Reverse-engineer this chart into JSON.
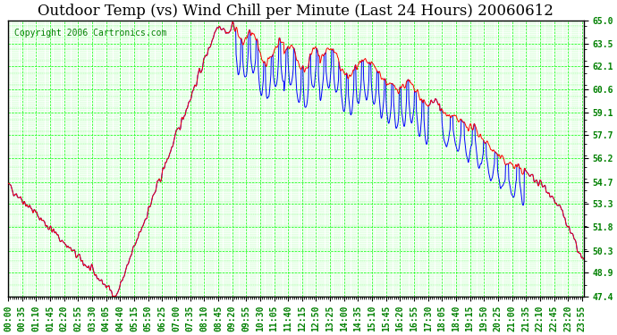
{
  "title": "Outdoor Temp (vs) Wind Chill per Minute (Last 24 Hours) 20060612",
  "copyright_text": "Copyright 2006 Cartronics.com",
  "ylabel_values": [
    47.4,
    48.9,
    50.3,
    51.8,
    53.3,
    54.7,
    56.2,
    57.7,
    59.1,
    60.6,
    62.1,
    63.5,
    65.0
  ],
  "ylim": [
    47.4,
    65.0
  ],
  "background_color": "#ffffff",
  "plot_bg_color": "#ffffff",
  "grid_color": "#00ff00",
  "title_fontsize": 12,
  "copyright_fontsize": 7,
  "tick_fontsize": 7,
  "red_color": "#ff0000",
  "blue_color": "#0000ff",
  "x_tick_interval_minutes": 35
}
